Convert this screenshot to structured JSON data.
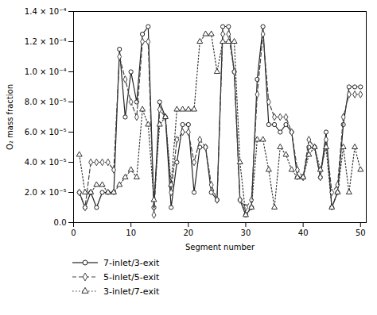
{
  "chart_data": {
    "type": "line",
    "xlabel": "Segment number",
    "ylabel": "O₂ mass fraction",
    "x": [
      1,
      2,
      3,
      4,
      5,
      6,
      7,
      8,
      9,
      10,
      11,
      12,
      13,
      14,
      15,
      16,
      17,
      18,
      19,
      20,
      21,
      22,
      23,
      24,
      25,
      26,
      27,
      28,
      29,
      30,
      31,
      32,
      33,
      34,
      35,
      36,
      37,
      38,
      39,
      40,
      41,
      42,
      43,
      44,
      45,
      46,
      47,
      48,
      49,
      50
    ],
    "series": [
      {
        "name": "7-inlet/3-exit",
        "color": "#222222",
        "marker": "circle",
        "line_style": "solid",
        "values": [
          2e-05,
          1e-05,
          2e-05,
          1e-05,
          2e-05,
          2e-05,
          2e-05,
          0.000115,
          7e-05,
          0.0001,
          8e-05,
          0.000125,
          0.00013,
          1e-05,
          8e-05,
          7e-05,
          1e-05,
          4e-05,
          6.5e-05,
          6.5e-05,
          2e-05,
          5e-05,
          5e-05,
          2e-05,
          1.5e-05,
          0.00013,
          0.00013,
          0.0001,
          1.5e-05,
          5e-06,
          1e-05,
          9.5e-05,
          0.00013,
          6.5e-05,
          6.5e-05,
          6e-05,
          6.5e-05,
          6e-05,
          3e-05,
          3e-05,
          5e-05,
          5e-05,
          3e-05,
          6e-05,
          1e-05,
          2e-05,
          6.5e-05,
          9e-05,
          9e-05,
          9e-05
        ]
      },
      {
        "name": "5-inlet/5-exit",
        "color": "#444444",
        "marker": "diamond",
        "line_style": "dashed",
        "values": [
          2e-05,
          1e-05,
          4e-05,
          4e-05,
          4e-05,
          4e-05,
          3.5e-05,
          0.00011,
          9.5e-05,
          8e-05,
          7e-05,
          0.00012,
          0.00012,
          5e-06,
          7.5e-05,
          7e-05,
          2e-05,
          5.5e-05,
          6e-05,
          6e-05,
          4e-05,
          5.5e-05,
          5e-05,
          2.5e-05,
          1.5e-05,
          0.000125,
          0.000125,
          0.0001,
          1.5e-05,
          1e-05,
          1.5e-05,
          8.5e-05,
          0.000125,
          8e-05,
          7e-05,
          7e-05,
          7e-05,
          6e-05,
          3.5e-05,
          3e-05,
          5.5e-05,
          5e-05,
          3e-05,
          5.5e-05,
          2e-05,
          2.5e-05,
          7e-05,
          8.5e-05,
          8.5e-05,
          8.5e-05
        ]
      },
      {
        "name": "3-inlet/7-exit",
        "color": "#333333",
        "marker": "triangle",
        "line_style": "dotted",
        "values": [
          4.5e-05,
          2e-05,
          2e-05,
          2.5e-05,
          2.5e-05,
          2e-05,
          2e-05,
          2.5e-05,
          3e-05,
          3.5e-05,
          3e-05,
          7.5e-05,
          6.5e-05,
          1.5e-05,
          6.5e-05,
          7e-05,
          2.5e-05,
          7.5e-05,
          7.5e-05,
          7.5e-05,
          7.5e-05,
          0.00012,
          0.000125,
          0.000125,
          0.0001,
          0.00012,
          0.00012,
          0.00012,
          4e-05,
          5e-06,
          1e-05,
          5.5e-05,
          5.5e-05,
          3.5e-05,
          1e-05,
          5e-05,
          4.5e-05,
          3.5e-05,
          3e-05,
          3e-05,
          4.5e-05,
          5e-05,
          3.5e-05,
          5e-05,
          1e-05,
          2e-05,
          5e-05,
          2e-05,
          5e-05,
          3.5e-05
        ]
      }
    ],
    "xlim": [
      0,
      51
    ],
    "xticks": [
      0,
      10,
      20,
      30,
      40,
      50
    ],
    "ylim": [
      0.0,
      0.00014
    ],
    "yticks": [
      {
        "value": 0.0,
        "label": "0.0"
      },
      {
        "value": 2e-05,
        "label": "2.0 × 10⁻⁵"
      },
      {
        "value": 4e-05,
        "label": "4.0 × 10⁻⁵"
      },
      {
        "value": 6e-05,
        "label": "6.0 × 10⁻⁵"
      },
      {
        "value": 8e-05,
        "label": "8.0 × 10⁻⁵"
      },
      {
        "value": 0.0001,
        "label": "1.0 × 10⁻⁴"
      },
      {
        "value": 0.00012,
        "label": "1.2 × 10⁻⁴"
      },
      {
        "value": 0.00014,
        "label": "1.4 × 10⁻⁴"
      }
    ],
    "grid": false,
    "legend": "bottom"
  }
}
